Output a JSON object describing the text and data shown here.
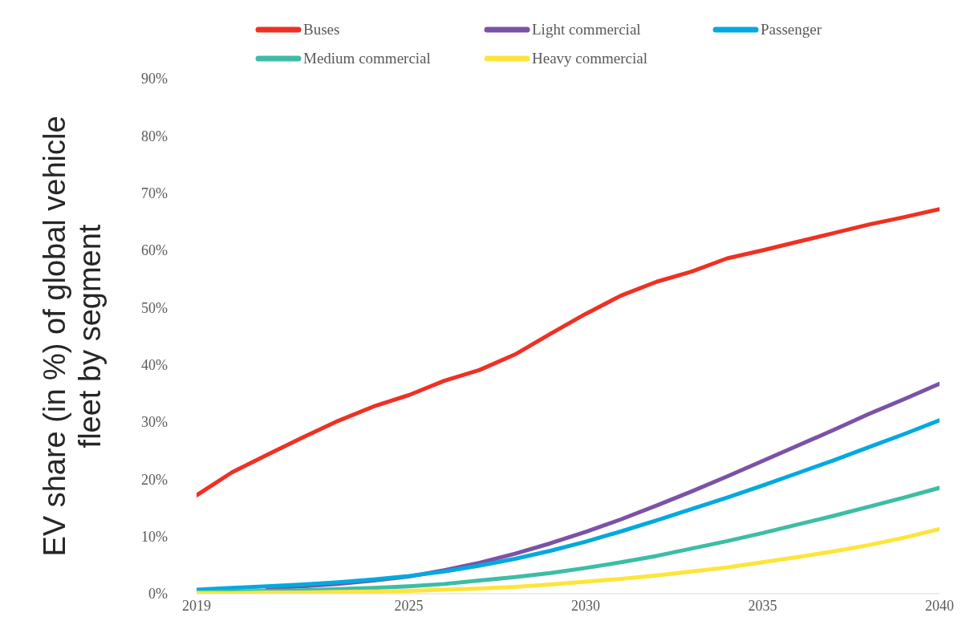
{
  "chart_data": {
    "type": "line",
    "ylabel": "EV share (in %) of global vehicle fleet by segment",
    "x": [
      2019,
      2020,
      2021,
      2022,
      2023,
      2024,
      2025,
      2026,
      2027,
      2028,
      2029,
      2030,
      2031,
      2032,
      2033,
      2034,
      2035,
      2036,
      2037,
      2038,
      2039,
      2040
    ],
    "xlim": [
      2019,
      2040
    ],
    "xticks": [
      2019,
      2025,
      2030,
      2035,
      2040
    ],
    "ylim": [
      0,
      90
    ],
    "yticks": [
      {
        "value": 0,
        "label": "0%"
      },
      {
        "value": 10,
        "label": "10%"
      },
      {
        "value": 20,
        "label": "20%"
      },
      {
        "value": 30,
        "label": "30%"
      },
      {
        "value": 40,
        "label": "40%"
      },
      {
        "value": 50,
        "label": "50%"
      },
      {
        "value": 60,
        "label": "60%"
      },
      {
        "value": 70,
        "label": "70%"
      },
      {
        "value": 80,
        "label": "80%"
      },
      {
        "value": 90,
        "label": "90%"
      }
    ],
    "grid": false,
    "legend": "top",
    "marker": "none",
    "line_style": "solid",
    "series": [
      {
        "name": "Buses",
        "color": "#ee3124",
        "values": [
          17.2,
          21.2,
          24.3,
          27.3,
          30.2,
          32.7,
          34.7,
          37.2,
          39.1,
          41.8,
          45.4,
          48.9,
          52.1,
          54.5,
          56.3,
          58.6,
          60.0,
          61.5,
          63.0,
          64.5,
          65.8,
          67.2
        ]
      },
      {
        "name": "Light commercial",
        "color": "#7b52a6",
        "values": [
          null,
          null,
          1.0,
          1.3,
          1.7,
          2.3,
          3.0,
          4.1,
          5.4,
          7.0,
          8.8,
          10.8,
          13.0,
          15.4,
          17.9,
          20.5,
          23.2,
          25.9,
          28.6,
          31.4,
          34.0,
          36.7
        ]
      },
      {
        "name": "Passenger",
        "color": "#00a9e0",
        "values": [
          0.7,
          1.0,
          1.3,
          1.6,
          2.0,
          2.5,
          3.1,
          3.9,
          4.9,
          6.1,
          7.5,
          9.1,
          10.9,
          12.8,
          14.8,
          16.8,
          18.9,
          21.1,
          23.3,
          25.6,
          27.9,
          30.3
        ]
      },
      {
        "name": "Medium commercial",
        "color": "#3dbda5",
        "values": [
          0.3,
          0.4,
          0.5,
          0.6,
          0.8,
          1.0,
          1.3,
          1.7,
          2.3,
          2.9,
          3.6,
          4.5,
          5.5,
          6.6,
          7.9,
          9.2,
          10.6,
          12.1,
          13.6,
          15.2,
          16.8,
          18.5
        ]
      },
      {
        "name": "Heavy commercial",
        "color": "#fde53a",
        "values": [
          0.1,
          0.1,
          0.2,
          0.2,
          0.3,
          0.4,
          0.5,
          0.7,
          0.9,
          1.2,
          1.6,
          2.1,
          2.6,
          3.2,
          3.9,
          4.6,
          5.5,
          6.4,
          7.4,
          8.5,
          9.8,
          11.3
        ]
      }
    ]
  }
}
